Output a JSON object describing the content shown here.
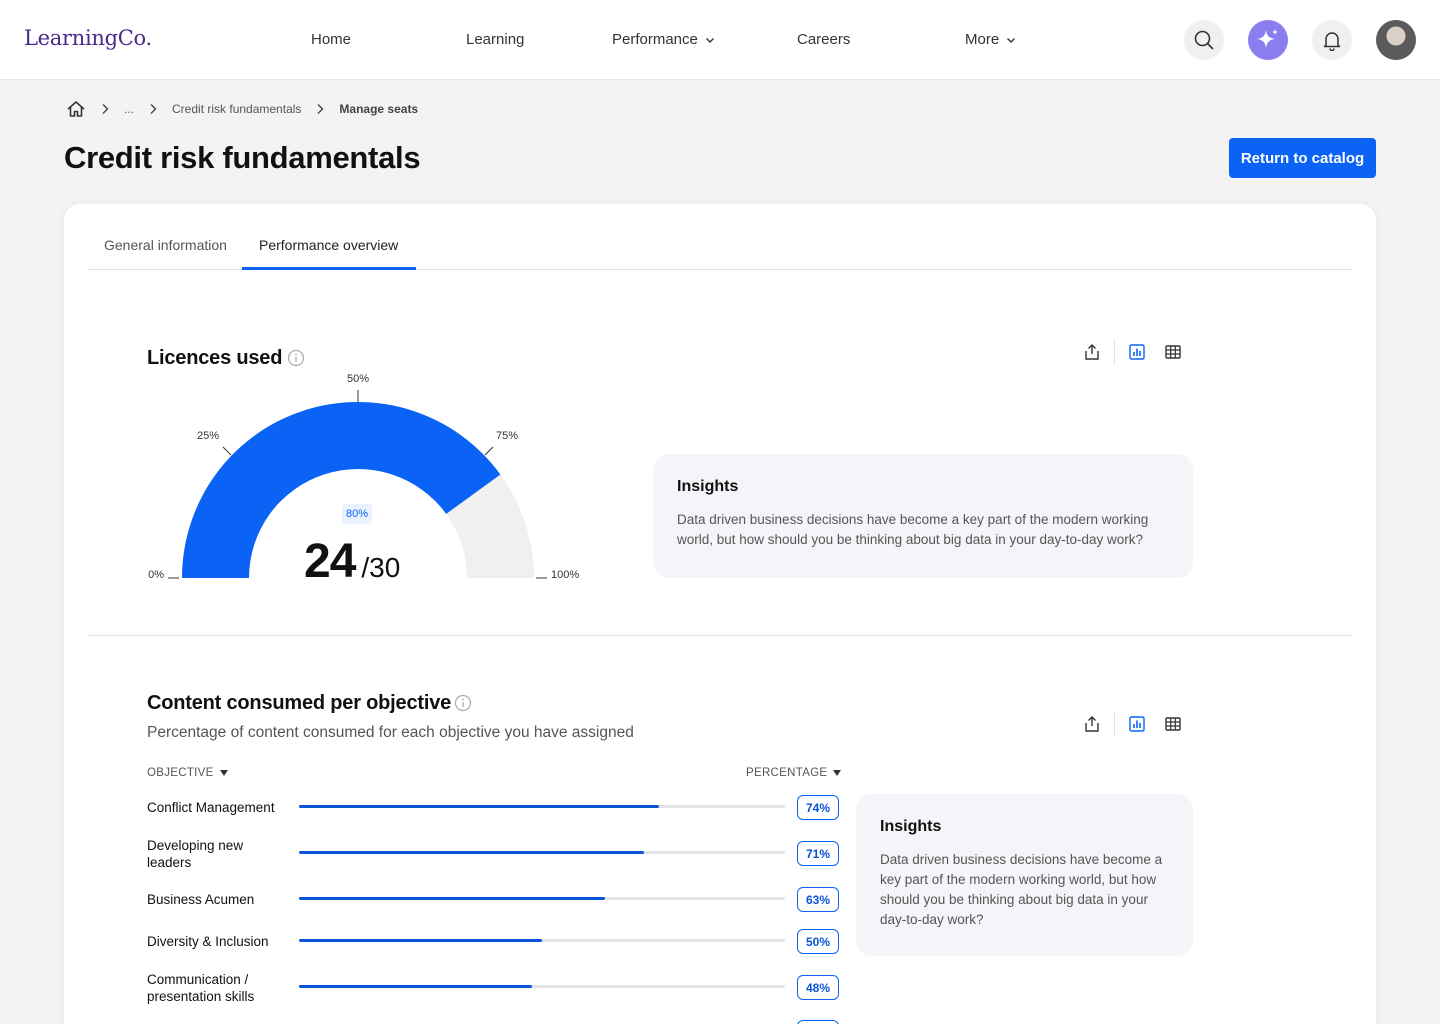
{
  "app": {
    "logo": "LearningCo."
  },
  "nav": {
    "items": [
      {
        "label": "Home"
      },
      {
        "label": "Learning"
      },
      {
        "label": "Performance"
      },
      {
        "label": "Careers"
      },
      {
        "label": "More"
      }
    ]
  },
  "breadcrumb": {
    "ellipsis": "...",
    "course": "Credit risk fundamentals",
    "current": "Manage seats"
  },
  "page": {
    "title": "Credit risk fundamentals",
    "return_button": "Return to catalog"
  },
  "tabs": [
    {
      "label": "General information",
      "active": false
    },
    {
      "label": "Performance overview",
      "active": true
    }
  ],
  "licences": {
    "title": "Licences used",
    "percent_label": "80%",
    "used": "24",
    "total": "/30",
    "fraction": 0.8,
    "ticks": {
      "t0": "0%",
      "t25": "25%",
      "t50": "50%",
      "t75": "75%",
      "t100": "100%"
    },
    "insight_title": "Insights",
    "insight_text": "Data driven business decisions have become a key part of the modern working world, but how should you be thinking about big data in your day-to-day work?"
  },
  "consumed": {
    "title": "Content consumed per objective",
    "subtitle": "Percentage of content consumed for each objective you have assigned",
    "col_objective": "OBJECTIVE",
    "col_percentage": "PERCENTAGE",
    "rows": [
      {
        "label": "Conflict Management",
        "pct": "74%",
        "value": 74
      },
      {
        "label": "Developing new leaders",
        "pct": "71%",
        "value": 71
      },
      {
        "label": "Business Acumen",
        "pct": "63%",
        "value": 63
      },
      {
        "label": "Diversity & Inclusion",
        "pct": "50%",
        "value": 50
      },
      {
        "label": "Communication / presentation skills",
        "pct": "48%",
        "value": 48
      }
    ],
    "insight_title": "Insights",
    "insight_text": "Data driven business decisions have become a key part of the modern working world, but how should you be thinking about big data in your day-to-day work?"
  },
  "colors": {
    "accent": "#0b63f6",
    "bar": "#0b55d9",
    "ai": "#8a7df0"
  }
}
